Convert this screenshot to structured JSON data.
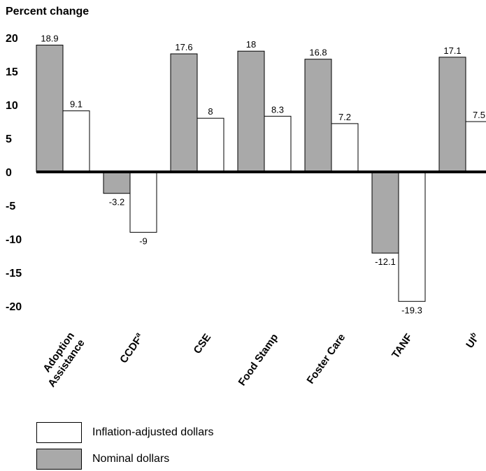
{
  "chart_data": {
    "type": "bar",
    "ylabel": "Percent change",
    "categories": [
      "Adoption Assistance",
      "CCDF",
      "CSE",
      "Food Stamp",
      "Foster Care",
      "TANF",
      "UI"
    ],
    "category_superscripts": [
      "",
      "a",
      "",
      "",
      "",
      "",
      "b"
    ],
    "series": [
      {
        "name": "Nominal dollars",
        "values": [
          18.9,
          -3.2,
          17.6,
          18,
          16.8,
          -12.1,
          17.1
        ],
        "labels": [
          "18.9",
          "-3.2",
          "17.6",
          "18",
          "16.8",
          "-12.1",
          "17.1"
        ],
        "color": "#a9a9a9"
      },
      {
        "name": "Inflation-adjusted dollars",
        "values": [
          9.1,
          -9,
          8,
          8.3,
          7.2,
          -19.3,
          7.5
        ],
        "labels": [
          "9.1",
          "-9",
          "8",
          "8.3",
          "7.2",
          "-19.3",
          "7.5"
        ],
        "color": "#ffffff"
      }
    ],
    "yticks": [
      "20",
      "15",
      "10",
      "5",
      "0",
      "-5",
      "-10",
      "-15",
      "-20"
    ],
    "ylim": [
      -20,
      20
    ],
    "legend": [
      {
        "label": "Inflation-adjusted dollars",
        "color": "#ffffff"
      },
      {
        "label": "Nominal dollars",
        "color": "#a9a9a9"
      }
    ],
    "grid": false
  }
}
